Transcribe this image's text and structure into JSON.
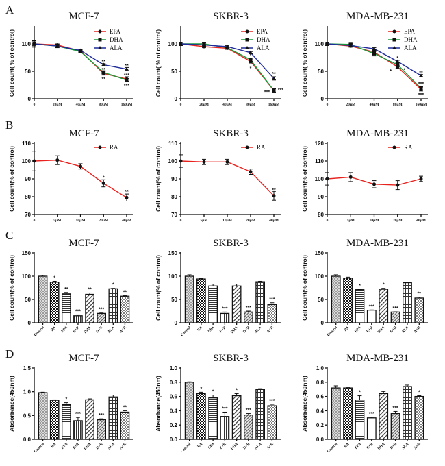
{
  "figure": {
    "panel_letters": [
      "A",
      "B",
      "C",
      "D"
    ]
  },
  "chart_data": [
    {
      "id": "A1",
      "row": "A",
      "type": "line",
      "title": "MCF-7",
      "ylabel": "Cell count( % of control)",
      "xlabel": "",
      "x": [
        "0",
        "20μM",
        "40μM",
        "80μM",
        "160μM"
      ],
      "ylim": [
        0,
        130
      ],
      "yticks": [
        0,
        50,
        100
      ],
      "legend": "top-right",
      "series": [
        {
          "name": "EPA",
          "color": "#e8231f",
          "marker": "circle",
          "values": [
            100,
            98,
            87,
            46,
            36
          ],
          "errors": [
            6,
            2,
            2,
            3,
            4
          ]
        },
        {
          "name": "DHA",
          "color": "#1a9a3a",
          "marker": "square",
          "values": [
            100,
            96,
            86,
            48,
            34
          ],
          "errors": [
            5,
            3,
            2,
            3,
            3
          ]
        },
        {
          "name": "ALA",
          "color": "#1f2b9a",
          "marker": "triangle",
          "values": [
            100,
            96,
            88,
            62,
            54
          ],
          "errors": [
            3,
            2,
            2,
            2,
            3
          ]
        }
      ],
      "annotations": [
        {
          "x": "80μM",
          "y": 69,
          "text": "**"
        },
        {
          "x": "80μM",
          "y": 54,
          "text": "**"
        },
        {
          "x": "80μM",
          "y": 37,
          "text": "**"
        },
        {
          "x": "160μM",
          "y": 61,
          "text": "**"
        },
        {
          "x": "160μM",
          "y": 44,
          "text": "***"
        },
        {
          "x": "160μM",
          "y": 25,
          "text": "***"
        }
      ]
    },
    {
      "id": "A2",
      "row": "A",
      "type": "line",
      "title": "SKBR-3",
      "ylabel": "Cell count( % of control)",
      "xlabel": "",
      "x": [
        "0",
        "20μM",
        "40μM",
        "80μM",
        "160μM"
      ],
      "ylim": [
        0,
        130
      ],
      "yticks": [
        0,
        50,
        100
      ],
      "legend": "top-right",
      "series": [
        {
          "name": "EPA",
          "color": "#e8231f",
          "marker": "circle",
          "values": [
            100,
            95,
            92,
            68,
            15
          ],
          "errors": [
            3,
            2,
            2,
            3,
            3
          ]
        },
        {
          "name": "DHA",
          "color": "#1a9a3a",
          "marker": "square",
          "values": [
            100,
            100,
            93,
            71,
            15
          ],
          "errors": [
            3,
            2,
            2,
            3,
            3
          ]
        },
        {
          "name": "ALA",
          "color": "#1f2b9a",
          "marker": "triangle",
          "values": [
            100,
            98,
            95,
            84,
            37
          ],
          "errors": [
            3,
            2,
            2,
            2,
            3
          ]
        }
      ],
      "annotations": [
        {
          "x": "80μM",
          "y": 80,
          "text": "*"
        },
        {
          "x": "80μM",
          "y": 56,
          "text": "*"
        },
        {
          "x": "160μM",
          "y": 46,
          "text": "**"
        },
        {
          "x": "160μM",
          "y": 13,
          "text": "***",
          "side": "left"
        },
        {
          "x": "160μM",
          "y": 17,
          "text": "***",
          "side": "right"
        }
      ]
    },
    {
      "id": "A3",
      "row": "A",
      "type": "line",
      "title": "MDA-MB-231",
      "ylabel": "Cell count( % of control)",
      "xlabel": "",
      "x": [
        "0",
        "20μM",
        "40μM",
        "80μM",
        "160μM"
      ],
      "ylim": [
        0,
        130
      ],
      "yticks": [
        0,
        50,
        100
      ],
      "legend": "top-right",
      "series": [
        {
          "name": "EPA",
          "color": "#e8231f",
          "marker": "circle",
          "values": [
            100,
            96,
            85,
            58,
            17
          ],
          "errors": [
            3,
            2,
            3,
            3,
            3
          ]
        },
        {
          "name": "DHA",
          "color": "#1a9a3a",
          "marker": "square",
          "values": [
            100,
            99,
            82,
            62,
            19
          ],
          "errors": [
            3,
            2,
            4,
            3,
            3
          ]
        },
        {
          "name": "ALA",
          "color": "#1f2b9a",
          "marker": "triangle",
          "values": [
            100,
            97,
            91,
            68,
            42
          ],
          "errors": [
            3,
            2,
            2,
            2,
            2
          ]
        }
      ],
      "annotations": [
        {
          "x": "80μM",
          "y": 75,
          "text": "*"
        },
        {
          "x": "80μM",
          "y": 51,
          "text": "*",
          "side": "left"
        },
        {
          "x": "80μM",
          "y": 53,
          "text": "*",
          "side": "right"
        },
        {
          "x": "160μM",
          "y": 49,
          "text": "**"
        },
        {
          "x": "160μM",
          "y": 28,
          "text": "***"
        },
        {
          "x": "160μM",
          "y": 8,
          "text": "***"
        }
      ]
    },
    {
      "id": "B1",
      "row": "B",
      "type": "line",
      "title": "MCF-7",
      "ylabel": "Cell count(% of control)",
      "xlabel": "",
      "x": [
        "0",
        "5μM",
        "10μM",
        "20μM",
        "40μM"
      ],
      "ylim": [
        70,
        110
      ],
      "yticks": [
        70,
        80,
        90,
        100,
        110
      ],
      "legend": "top-right",
      "series": [
        {
          "name": "RA",
          "color": "#e8231f",
          "marker": "circle",
          "values": [
            100,
            100.5,
            97,
            87.5,
            79.5
          ],
          "errors": [
            5.5,
            2.5,
            1.5,
            2,
            2
          ]
        }
      ],
      "annotations": [
        {
          "x": "20μM",
          "y": 91,
          "text": "*"
        },
        {
          "x": "40μM",
          "y": 83,
          "text": "**"
        }
      ]
    },
    {
      "id": "B2",
      "row": "B",
      "type": "line",
      "title": "SKBR-3",
      "ylabel": "Cell count(% of control)",
      "xlabel": "",
      "x": [
        "0",
        "5μM",
        "10μM",
        "20μM",
        "40μM"
      ],
      "ylim": [
        70,
        110
      ],
      "yticks": [
        70,
        80,
        90,
        100,
        110
      ],
      "legend": "top-right",
      "series": [
        {
          "name": "RA",
          "color": "#e8231f",
          "marker": "circle",
          "values": [
            100,
            99.5,
            99.5,
            94,
            80.5
          ],
          "errors": [
            3.5,
            1.5,
            1.5,
            1.5,
            2.5
          ]
        }
      ],
      "annotations": [
        {
          "x": "40μM",
          "y": 84,
          "text": "**"
        }
      ]
    },
    {
      "id": "B3",
      "row": "B",
      "type": "line",
      "title": "MDA-MB-231",
      "ylabel": "Cell count(% of control)",
      "xlabel": "",
      "x": [
        "0",
        "5μM",
        "10μM",
        "20μM",
        "40μM"
      ],
      "ylim": [
        80,
        120
      ],
      "yticks": [
        80,
        90,
        100,
        110,
        120
      ],
      "legend": "top-right",
      "series": [
        {
          "name": "RA",
          "color": "#e8231f",
          "marker": "circle",
          "values": [
            100,
            101,
            97,
            96.5,
            100
          ],
          "errors": [
            3.5,
            2.5,
            2,
            2.5,
            1.5
          ]
        }
      ],
      "annotations": []
    },
    {
      "id": "C1",
      "row": "C",
      "type": "bar",
      "title": "MCF-7",
      "ylabel": "Cell count(% of control)",
      "xlabel": "",
      "categories": [
        "Control",
        "RA",
        "EPA",
        "E+R",
        "DHA",
        "D+R",
        "ALA",
        "A+R"
      ],
      "values": [
        100,
        87,
        62,
        15,
        61,
        20,
        73,
        57
      ],
      "errors": [
        2,
        2,
        3,
        2,
        3,
        1,
        1,
        1
      ],
      "significance": [
        "",
        "*",
        "**",
        "***",
        "**",
        "***",
        "*",
        "**"
      ],
      "ylim": [
        0,
        150
      ],
      "yticks": [
        0,
        50,
        100,
        150
      ]
    },
    {
      "id": "C2",
      "row": "C",
      "type": "bar",
      "title": "SKBR-3",
      "ylabel": "Cell count(% of control)",
      "xlabel": "",
      "categories": [
        "Control",
        "RA",
        "EPA",
        "E+R",
        "DHA",
        "D+R",
        "ALA",
        "A+R"
      ],
      "values": [
        100,
        94,
        79,
        20,
        79,
        23,
        88,
        39
      ],
      "errors": [
        3,
        1,
        4,
        3,
        4,
        2,
        1,
        4
      ],
      "significance": [
        "",
        "",
        "",
        "***",
        "",
        "***",
        "",
        "***"
      ],
      "ylim": [
        0,
        150
      ],
      "yticks": [
        0,
        50,
        100,
        150
      ]
    },
    {
      "id": "C3",
      "row": "C",
      "type": "bar",
      "title": "MDA-MB-231",
      "ylabel": "Cell count(% of control)",
      "xlabel": "",
      "categories": [
        "Control",
        "RA",
        "EPA",
        "E+R",
        "DHA",
        "D+R",
        "ALA",
        "A+R"
      ],
      "values": [
        100,
        96,
        71,
        27,
        72,
        23,
        86,
        53
      ],
      "errors": [
        3,
        2,
        1,
        0.5,
        2,
        0.5,
        1,
        2
      ],
      "significance": [
        "",
        "",
        "*",
        "***",
        "*",
        "***",
        "",
        "**"
      ],
      "ylim": [
        0,
        150
      ],
      "yticks": [
        0,
        50,
        100,
        150
      ]
    },
    {
      "id": "D1",
      "row": "D",
      "type": "bar",
      "title": "MCF-7",
      "ylabel": "Absorbance(450nm)",
      "xlabel": "",
      "categories": [
        "Control",
        "RA",
        "EPA",
        "E+R",
        "DHA",
        "D+R",
        "ALA",
        "A+R"
      ],
      "values": [
        0.98,
        0.82,
        0.73,
        0.39,
        0.83,
        0.41,
        0.89,
        0.57
      ],
      "errors": [
        0.01,
        0.01,
        0.04,
        0.07,
        0.02,
        0.02,
        0.04,
        0.03
      ],
      "significance": [
        "",
        "",
        "*",
        "***",
        "",
        "***",
        "",
        "**"
      ],
      "ylim": [
        0,
        1.5
      ],
      "yticks": [
        0.0,
        0.5,
        1.0,
        1.5
      ]
    },
    {
      "id": "D2",
      "row": "D",
      "type": "bar",
      "title": "SKBR-3",
      "ylabel": "Absorbance(450nm)",
      "xlabel": "",
      "categories": [
        "Control",
        "RA",
        "EPA",
        "E+R",
        "DHA",
        "D+R",
        "ALA",
        "A+R"
      ],
      "values": [
        0.8,
        0.64,
        0.58,
        0.32,
        0.61,
        0.34,
        0.7,
        0.47
      ],
      "errors": [
        0.005,
        0.02,
        0.04,
        0.06,
        0.03,
        0.02,
        0.01,
        0.02
      ],
      "significance": [
        "",
        "*",
        "*",
        "***",
        "*",
        "***",
        "",
        "***"
      ],
      "ylim": [
        0,
        1.0
      ],
      "yticks": [
        0.0,
        0.2,
        0.4,
        0.6,
        0.8,
        1.0
      ]
    },
    {
      "id": "D3",
      "row": "D",
      "type": "bar",
      "title": "MDA-MB-231",
      "ylabel": "Absorbance(450nm)",
      "xlabel": "",
      "categories": [
        "Control",
        "RA",
        "EPA",
        "E+R",
        "DHA",
        "D+R",
        "ALA",
        "A+R"
      ],
      "values": [
        0.72,
        0.72,
        0.55,
        0.3,
        0.64,
        0.36,
        0.74,
        0.6
      ],
      "errors": [
        0.03,
        0.005,
        0.06,
        0.01,
        0.03,
        0.03,
        0.02,
        0.01
      ],
      "significance": [
        "",
        "",
        "*",
        "***",
        "",
        "***",
        "",
        "*"
      ],
      "ylim": [
        0,
        1.0
      ],
      "yticks": [
        0.0,
        0.2,
        0.4,
        0.6,
        0.8,
        1.0
      ]
    }
  ]
}
